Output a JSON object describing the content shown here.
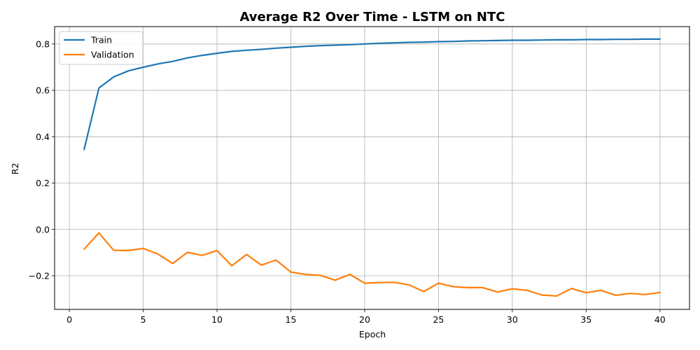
{
  "chart_data": {
    "type": "line",
    "title": "Average R2 Over Time - LSTM on NTC",
    "xlabel": "Epoch",
    "ylabel": "R2",
    "xlim": [
      -1,
      42
    ],
    "ylim": [
      -0.345,
      0.875
    ],
    "xticks": [
      0,
      5,
      10,
      15,
      20,
      25,
      30,
      35,
      40
    ],
    "yticks": [
      -0.2,
      0.0,
      0.2,
      0.4,
      0.6,
      0.8
    ],
    "ytick_labels": [
      "−0.2",
      "0.0",
      "0.2",
      "0.4",
      "0.6",
      "0.8"
    ],
    "grid": true,
    "legend_position": "top-left",
    "x": [
      1,
      2,
      3,
      4,
      5,
      6,
      7,
      8,
      9,
      10,
      11,
      12,
      13,
      14,
      15,
      16,
      17,
      18,
      19,
      20,
      21,
      22,
      23,
      24,
      25,
      26,
      27,
      28,
      29,
      30,
      31,
      32,
      33,
      34,
      35,
      36,
      37,
      38,
      39,
      40
    ],
    "series": [
      {
        "name": "Train",
        "color": "#1f77b4",
        "values": [
          0.345,
          0.61,
          0.658,
          0.684,
          0.7,
          0.714,
          0.725,
          0.74,
          0.751,
          0.76,
          0.768,
          0.773,
          0.777,
          0.782,
          0.786,
          0.79,
          0.793,
          0.795,
          0.797,
          0.8,
          0.803,
          0.805,
          0.807,
          0.808,
          0.81,
          0.811,
          0.813,
          0.814,
          0.815,
          0.816,
          0.816,
          0.817,
          0.818,
          0.818,
          0.819,
          0.819,
          0.82,
          0.82,
          0.821,
          0.821
        ]
      },
      {
        "name": "Validation",
        "color": "#ff7f0e",
        "values": [
          -0.085,
          -0.015,
          -0.09,
          -0.091,
          -0.082,
          -0.106,
          -0.147,
          -0.099,
          -0.112,
          -0.091,
          -0.157,
          -0.108,
          -0.154,
          -0.132,
          -0.184,
          -0.194,
          -0.198,
          -0.219,
          -0.194,
          -0.232,
          -0.229,
          -0.228,
          -0.239,
          -0.268,
          -0.232,
          -0.247,
          -0.251,
          -0.251,
          -0.27,
          -0.256,
          -0.263,
          -0.283,
          -0.287,
          -0.255,
          -0.273,
          -0.263,
          -0.284,
          -0.276,
          -0.281,
          -0.272
        ]
      }
    ]
  }
}
